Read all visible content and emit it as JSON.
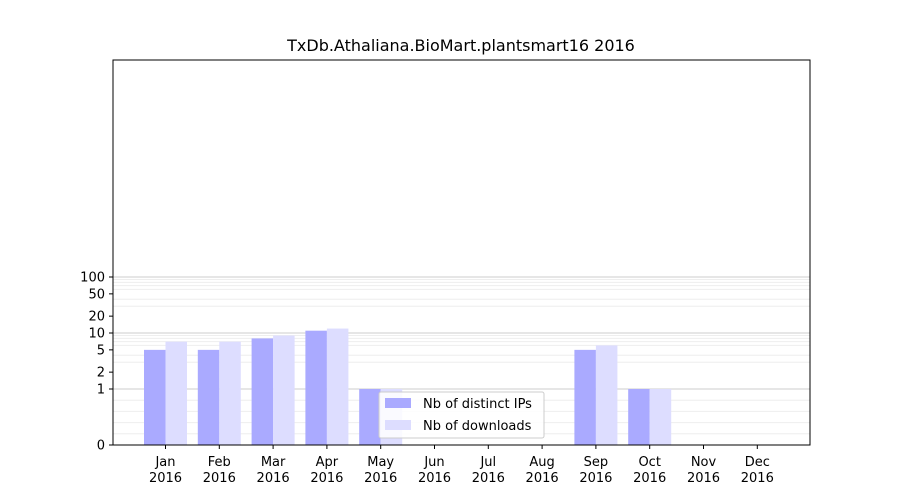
{
  "chart_data": {
    "type": "bar",
    "title": "TxDb.Athaliana.BioMart.plantsmart16 2016",
    "xlabel": "",
    "ylabel": "",
    "y_scale": "symlog",
    "ylim": [
      0,
      120
    ],
    "y_ticks": [
      0,
      1,
      2,
      5,
      10,
      20,
      50,
      100
    ],
    "y_tick_labels": [
      "0",
      "1",
      "2",
      "5",
      "10",
      "20",
      "50",
      "100"
    ],
    "grid": true,
    "legend_position": "lower-center",
    "categories": [
      "Jan\n2016",
      "Feb\n2016",
      "Mar\n2016",
      "Apr\n2016",
      "May\n2016",
      "Jun\n2016",
      "Jul\n2016",
      "Aug\n2016",
      "Sep\n2016",
      "Oct\n2016",
      "Nov\n2016",
      "Dec\n2016"
    ],
    "category_months": [
      "Jan",
      "Feb",
      "Mar",
      "Apr",
      "May",
      "Jun",
      "Jul",
      "Aug",
      "Sep",
      "Oct",
      "Nov",
      "Dec"
    ],
    "category_years": [
      "2016",
      "2016",
      "2016",
      "2016",
      "2016",
      "2016",
      "2016",
      "2016",
      "2016",
      "2016",
      "2016",
      "2016"
    ],
    "series": [
      {
        "name": "Nb of distinct IPs",
        "color": "#aaaaff",
        "values": [
          5,
          5,
          8,
          11,
          1,
          0,
          0,
          0,
          5,
          1,
          0,
          0
        ]
      },
      {
        "name": "Nb of downloads",
        "color": "#ddddff",
        "values": [
          7,
          7,
          9,
          12,
          1,
          0,
          0,
          0,
          6,
          1,
          0,
          0
        ]
      }
    ]
  }
}
